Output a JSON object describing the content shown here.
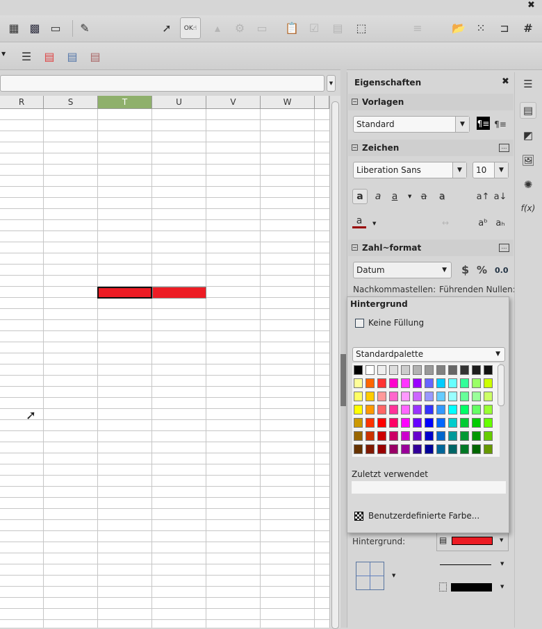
{
  "window": {
    "close_icon": "close-icon"
  },
  "toolbar1": {
    "icons": [
      "insert-chart-icon",
      "pivot-table-icon",
      "headers-icon",
      "draw-functions-icon",
      "select-icon",
      "push-button-icon",
      "move-up-icon",
      "form-properties-icon",
      "form-navigator-icon",
      "form-design-icon",
      "checkbox-icon",
      "table-control-icon",
      "design-mode-icon",
      "align-icon",
      "open-folder-icon",
      "grid-icon",
      "wrap-icon",
      "snap-grid-icon"
    ]
  },
  "toolbar2": {
    "icons": [
      "freeze-rows-icon",
      "conditional-color-icon",
      "data-bar-icon",
      "icon-set-icon"
    ]
  },
  "formula_bar": {
    "value": ""
  },
  "sheet": {
    "columns": [
      "R",
      "S",
      "T",
      "U",
      "V",
      "W"
    ],
    "selected_column": "T",
    "filled_cells": [
      "T17",
      "U17"
    ],
    "fill_color": "#ed1c24"
  },
  "sidebar": {
    "title": "Eigenschaften",
    "vorlagen": {
      "title": "Vorlagen",
      "style": "Standard"
    },
    "zeichen": {
      "title": "Zeichen",
      "font": "Liberation Sans",
      "size": "10",
      "bold": "a",
      "italic": "a",
      "underline": "a",
      "strike": "a",
      "shadow": "a",
      "grow": "a↑",
      "shrink": "a↓",
      "font_color": "a",
      "super": "aᵇ",
      "sub": "aₕ",
      "font_color_value": "#990000"
    },
    "zahlformat": {
      "title": "Zahl~format",
      "format": "Datum",
      "currency": "$",
      "percent": "%",
      "decimal": "0.0",
      "decimals_label": "Nachkommastellen:",
      "leading_zeros_label": "Führenden Nullen:"
    },
    "hintergrund": {
      "label": "Hintergrund:",
      "color": "#ed1c24"
    },
    "tabs": [
      "menu-icon",
      "properties-icon",
      "styles-icon",
      "gallery-icon",
      "navigator-icon",
      "functions-icon"
    ],
    "functions_label": "f(x)"
  },
  "popup": {
    "title": "Hintergrund",
    "no_fill": "Keine Füllung",
    "palette": "Standardpalette",
    "recent": "Zuletzt verwendet",
    "custom": "Benutzerdefinierte Farbe...",
    "colors": [
      [
        "#000000",
        "#ffffff",
        "#eeeeee",
        "#dddddd",
        "#cccccc",
        "#b2b2b2",
        "#999999",
        "#808080",
        "#666666",
        "#333333",
        "#1c1c1c",
        "#111111"
      ],
      [
        "#ffff99",
        "#ff6600",
        "#ff3333",
        "#ff00cc",
        "#ff33ff",
        "#9900ff",
        "#6666ff",
        "#00ccff",
        "#66ffff",
        "#33ff99",
        "#99ff66",
        "#ccff00"
      ],
      [
        "#ffff66",
        "#ffcc00",
        "#ff9999",
        "#ff66cc",
        "#ff99ff",
        "#cc66ff",
        "#9999ff",
        "#66ccff",
        "#99ffff",
        "#66ff99",
        "#99ff99",
        "#ccff66"
      ],
      [
        "#ffff00",
        "#ff9900",
        "#ff6666",
        "#ff3399",
        "#ff66ff",
        "#9933ff",
        "#3333ff",
        "#3399ff",
        "#00ffff",
        "#00ff66",
        "#66ff66",
        "#99ff33"
      ],
      [
        "#cc9900",
        "#ff3300",
        "#ff0000",
        "#ff0066",
        "#ff00ff",
        "#6600ff",
        "#0000ff",
        "#0066ff",
        "#00cccc",
        "#00cc33",
        "#00cc00",
        "#66ff00"
      ],
      [
        "#996600",
        "#cc3300",
        "#cc0000",
        "#cc0066",
        "#cc00cc",
        "#6600cc",
        "#0000cc",
        "#0066cc",
        "#009999",
        "#009933",
        "#009900",
        "#66cc00"
      ],
      [
        "#663300",
        "#801900",
        "#990000",
        "#990066",
        "#990099",
        "#330099",
        "#000099",
        "#006699",
        "#006666",
        "#007826",
        "#006600",
        "#669900"
      ]
    ]
  }
}
